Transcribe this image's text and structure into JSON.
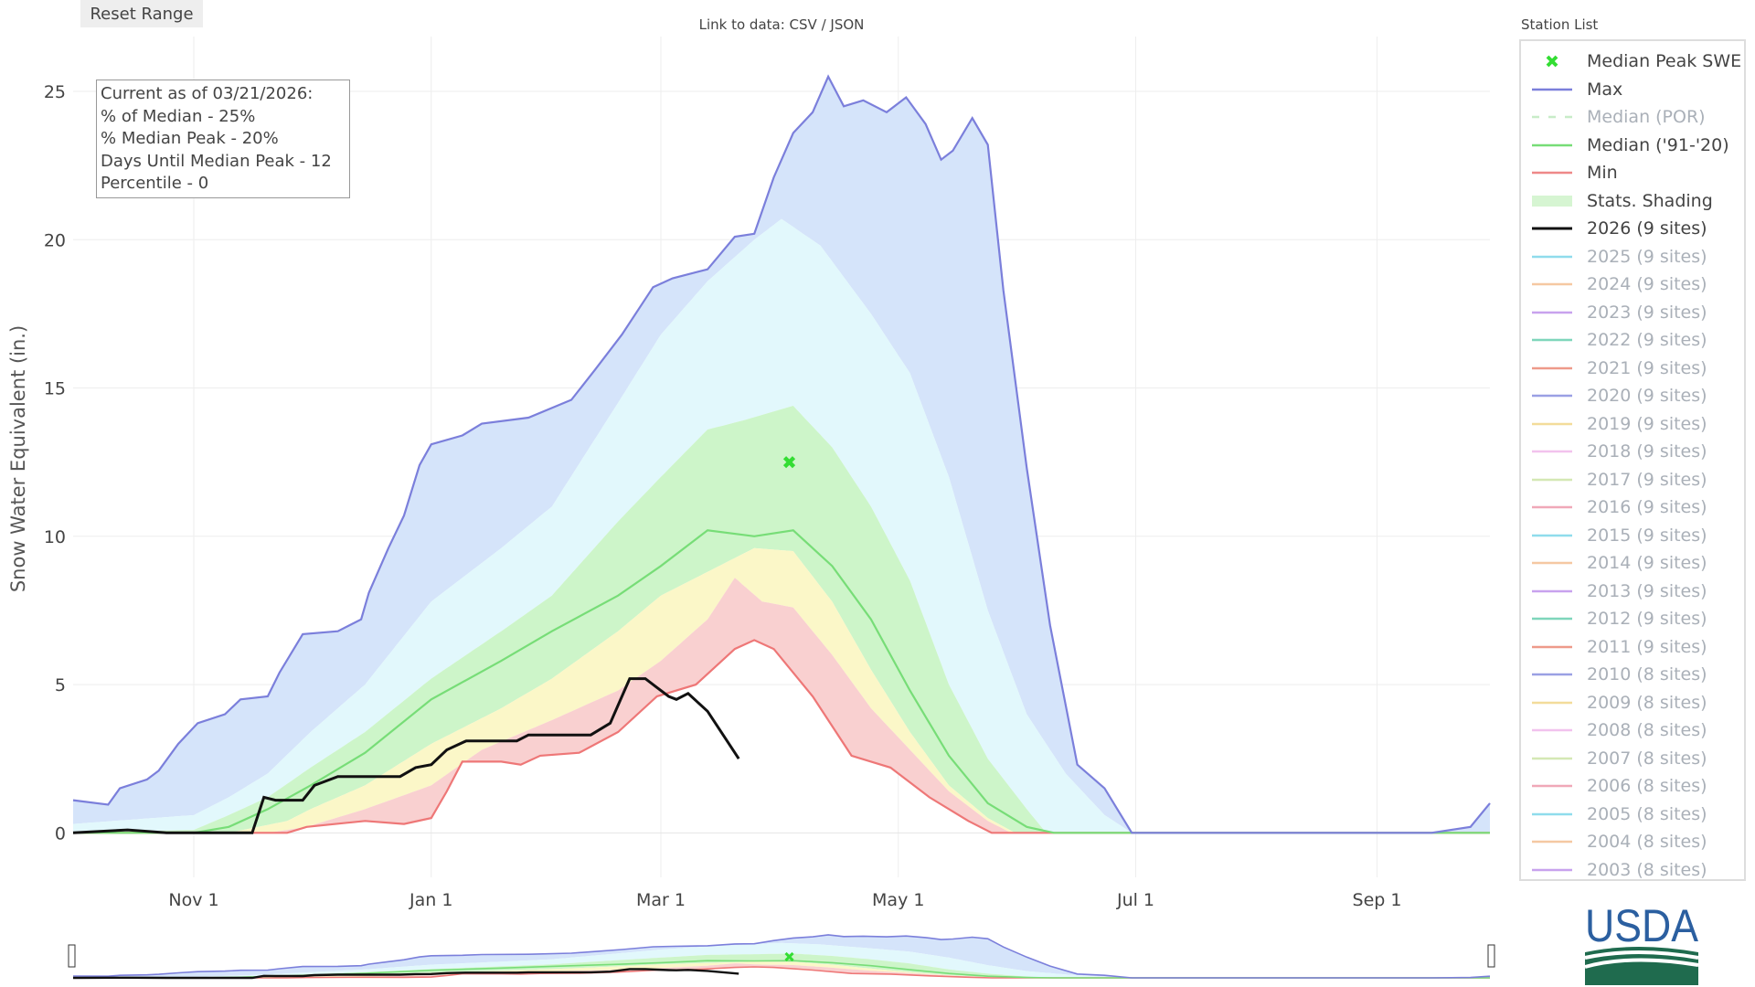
{
  "toolbar": {
    "reset_label": "Reset Range"
  },
  "links": {
    "prefix": "Link to data: ",
    "csv": "CSV",
    "sep": " / ",
    "json": "JSON"
  },
  "annotation": {
    "lines": [
      "Current as of 03/21/2026:",
      "% of Median - 25%",
      "% Median Peak - 20%",
      "Days Until Median Peak - 12",
      "Percentile - 0"
    ]
  },
  "legend": {
    "title": "Station List",
    "items": [
      {
        "label": "Median Peak SWE",
        "type": "marker",
        "color": "#33dd33",
        "active": true
      },
      {
        "label": "Max",
        "type": "line",
        "color": "#7b7fdb",
        "active": true
      },
      {
        "label": "Median (POR)",
        "type": "dash",
        "color": "#c8ecc8",
        "active": false
      },
      {
        "label": "Median ('91-'20)",
        "type": "line",
        "color": "#77dd77",
        "active": true
      },
      {
        "label": "Min",
        "type": "line",
        "color": "#ee8888",
        "active": true
      },
      {
        "label": "Stats. Shading",
        "type": "fill",
        "color": "#d6f5d2",
        "active": true
      },
      {
        "label": "2026 (9 sites)",
        "type": "line",
        "color": "#111111",
        "active": true
      },
      {
        "label": "2025 (9 sites)",
        "type": "line",
        "color": "#8fdcec",
        "active": false
      },
      {
        "label": "2024 (9 sites)",
        "type": "line",
        "color": "#f5c8a2",
        "active": false
      },
      {
        "label": "2023 (9 sites)",
        "type": "line",
        "color": "#c8a2ee",
        "active": false
      },
      {
        "label": "2022 (9 sites)",
        "type": "line",
        "color": "#7fd6bb",
        "active": false
      },
      {
        "label": "2021 (9 sites)",
        "type": "line",
        "color": "#ee9a8a",
        "active": false
      },
      {
        "label": "2020 (9 sites)",
        "type": "line",
        "color": "#9aa0e4",
        "active": false
      },
      {
        "label": "2019 (9 sites)",
        "type": "line",
        "color": "#f3dc9a",
        "active": false
      },
      {
        "label": "2018 (9 sites)",
        "type": "line",
        "color": "#f2c2ee",
        "active": false
      },
      {
        "label": "2017 (9 sites)",
        "type": "line",
        "color": "#d4e8b4",
        "active": false
      },
      {
        "label": "2016 (9 sites)",
        "type": "line",
        "color": "#f0a8b8",
        "active": false
      },
      {
        "label": "2015 (9 sites)",
        "type": "line",
        "color": "#8fdcec",
        "active": false
      },
      {
        "label": "2014 (9 sites)",
        "type": "line",
        "color": "#f5c8a2",
        "active": false
      },
      {
        "label": "2013 (9 sites)",
        "type": "line",
        "color": "#c8a2ee",
        "active": false
      },
      {
        "label": "2012 (9 sites)",
        "type": "line",
        "color": "#7fd6bb",
        "active": false
      },
      {
        "label": "2011 (9 sites)",
        "type": "line",
        "color": "#ee9a8a",
        "active": false
      },
      {
        "label": "2010 (8 sites)",
        "type": "line",
        "color": "#9aa0e4",
        "active": false
      },
      {
        "label": "2009 (8 sites)",
        "type": "line",
        "color": "#f3dc9a",
        "active": false
      },
      {
        "label": "2008 (8 sites)",
        "type": "line",
        "color": "#f2c2ee",
        "active": false
      },
      {
        "label": "2007 (8 sites)",
        "type": "line",
        "color": "#d4e8b4",
        "active": false
      },
      {
        "label": "2006 (8 sites)",
        "type": "line",
        "color": "#f0a8b8",
        "active": false
      },
      {
        "label": "2005 (8 sites)",
        "type": "line",
        "color": "#8fdcec",
        "active": false
      },
      {
        "label": "2004 (8 sites)",
        "type": "line",
        "color": "#f5c8a2",
        "active": false
      },
      {
        "label": "2003 (8 sites)",
        "type": "line",
        "color": "#c8a2ee",
        "active": false
      }
    ]
  },
  "logo": {
    "text": "USDA"
  },
  "chart_data": {
    "type": "area",
    "title": "",
    "xlabel": "",
    "ylabel": "Snow Water Equivalent (in.)",
    "x_unit": "days since Oct 1",
    "xlim": [
      0,
      364
    ],
    "ylim": [
      -1.5,
      26.85
    ],
    "grid": true,
    "legend_position": "right",
    "x_ticks": [
      {
        "day": 31,
        "label": "Nov 1"
      },
      {
        "day": 92,
        "label": "Jan 1"
      },
      {
        "day": 151,
        "label": "Mar 1"
      },
      {
        "day": 212,
        "label": "May 1"
      },
      {
        "day": 273,
        "label": "Jul 1"
      },
      {
        "day": 335,
        "label": "Sep 1"
      }
    ],
    "y_ticks": [
      0,
      5,
      10,
      15,
      20,
      25
    ],
    "colors": {
      "max": "#7b7fdb",
      "median": "#77dd77",
      "min": "#ee7777",
      "current": "#111111",
      "band_90_max": "#d5e4fa",
      "band_70_90": "#e2f8fc",
      "band_30_70": "#cdf5c9",
      "band_10_30": "#fbf7c8",
      "band_min_10": "#f9d0d0",
      "marker": "#33dd33"
    },
    "series": [
      {
        "name": "Max",
        "points": [
          [
            0,
            1.1
          ],
          [
            9,
            0.95
          ],
          [
            12,
            1.5
          ],
          [
            19,
            1.8
          ],
          [
            22,
            2.1
          ],
          [
            27,
            3.0
          ],
          [
            32,
            3.7
          ],
          [
            39,
            4.0
          ],
          [
            43,
            4.5
          ],
          [
            50,
            4.6
          ],
          [
            53,
            5.4
          ],
          [
            59,
            6.7
          ],
          [
            68,
            6.8
          ],
          [
            74,
            7.2
          ],
          [
            76,
            8.1
          ],
          [
            81,
            9.6
          ],
          [
            85,
            10.7
          ],
          [
            89,
            12.4
          ],
          [
            92,
            13.1
          ],
          [
            100,
            13.4
          ],
          [
            105,
            13.8
          ],
          [
            117,
            14.0
          ],
          [
            128,
            14.6
          ],
          [
            134,
            15.6
          ],
          [
            141,
            16.8
          ],
          [
            149,
            18.4
          ],
          [
            154,
            18.7
          ],
          [
            163,
            19.0
          ],
          [
            170,
            20.1
          ],
          [
            175,
            20.2
          ],
          [
            180,
            22.1
          ],
          [
            185,
            23.6
          ],
          [
            190,
            24.3
          ],
          [
            194,
            25.5
          ],
          [
            198,
            24.5
          ],
          [
            203,
            24.7
          ],
          [
            209,
            24.3
          ],
          [
            214,
            24.8
          ],
          [
            219,
            23.9
          ],
          [
            223,
            22.7
          ],
          [
            226,
            23.0
          ],
          [
            231,
            24.1
          ],
          [
            235,
            23.2
          ],
          [
            239,
            18.3
          ],
          [
            245,
            12.3
          ],
          [
            251,
            7.0
          ],
          [
            258,
            2.3
          ],
          [
            265,
            1.5
          ],
          [
            272,
            0
          ],
          [
            349,
            0
          ],
          [
            359,
            0.2
          ],
          [
            364,
            1.0
          ]
        ]
      },
      {
        "name": "90th Percentile",
        "points": [
          [
            0,
            0.3
          ],
          [
            31,
            0.6
          ],
          [
            40,
            1.2
          ],
          [
            50,
            2.0
          ],
          [
            61,
            3.4
          ],
          [
            75,
            5.0
          ],
          [
            92,
            7.8
          ],
          [
            110,
            9.6
          ],
          [
            123,
            11.0
          ],
          [
            140,
            14.5
          ],
          [
            151,
            16.8
          ],
          [
            163,
            18.6
          ],
          [
            175,
            20.0
          ],
          [
            182,
            20.7
          ],
          [
            192,
            19.8
          ],
          [
            205,
            17.5
          ],
          [
            215,
            15.5
          ],
          [
            225,
            12.0
          ],
          [
            235,
            7.5
          ],
          [
            245,
            4.0
          ],
          [
            255,
            2.0
          ],
          [
            265,
            0.6
          ],
          [
            272,
            0
          ],
          [
            364,
            0
          ]
        ]
      },
      {
        "name": "70th Percentile",
        "points": [
          [
            0,
            0
          ],
          [
            31,
            0.1
          ],
          [
            40,
            0.6
          ],
          [
            50,
            1.2
          ],
          [
            61,
            2.2
          ],
          [
            75,
            3.4
          ],
          [
            92,
            5.2
          ],
          [
            110,
            6.8
          ],
          [
            123,
            8.0
          ],
          [
            140,
            10.5
          ],
          [
            151,
            12.0
          ],
          [
            163,
            13.6
          ],
          [
            172,
            13.9
          ],
          [
            185,
            14.4
          ],
          [
            195,
            13.0
          ],
          [
            205,
            11.0
          ],
          [
            215,
            8.5
          ],
          [
            225,
            5.0
          ],
          [
            235,
            2.5
          ],
          [
            245,
            0.8
          ],
          [
            250,
            0
          ],
          [
            364,
            0
          ]
        ]
      },
      {
        "name": "Median ('91-'20)",
        "points": [
          [
            0,
            0
          ],
          [
            31,
            0
          ],
          [
            40,
            0.2
          ],
          [
            50,
            0.8
          ],
          [
            61,
            1.6
          ],
          [
            75,
            2.7
          ],
          [
            92,
            4.5
          ],
          [
            110,
            5.8
          ],
          [
            123,
            6.8
          ],
          [
            140,
            8.0
          ],
          [
            151,
            9.0
          ],
          [
            163,
            10.2
          ],
          [
            175,
            10.0
          ],
          [
            185,
            10.2
          ],
          [
            195,
            9.0
          ],
          [
            205,
            7.2
          ],
          [
            215,
            4.8
          ],
          [
            225,
            2.6
          ],
          [
            235,
            1.0
          ],
          [
            245,
            0.2
          ],
          [
            252,
            0
          ],
          [
            364,
            0
          ]
        ]
      },
      {
        "name": "30th Percentile",
        "points": [
          [
            0,
            0
          ],
          [
            40,
            0
          ],
          [
            55,
            0.4
          ],
          [
            61,
            0.8
          ],
          [
            75,
            1.6
          ],
          [
            92,
            3.0
          ],
          [
            110,
            4.2
          ],
          [
            123,
            5.2
          ],
          [
            140,
            6.8
          ],
          [
            151,
            8.0
          ],
          [
            163,
            8.8
          ],
          [
            175,
            9.6
          ],
          [
            185,
            9.5
          ],
          [
            195,
            7.8
          ],
          [
            205,
            5.5
          ],
          [
            215,
            3.4
          ],
          [
            225,
            1.6
          ],
          [
            235,
            0.5
          ],
          [
            242,
            0
          ],
          [
            364,
            0
          ]
        ]
      },
      {
        "name": "10th Percentile",
        "points": [
          [
            0,
            0
          ],
          [
            50,
            0
          ],
          [
            60,
            0.2
          ],
          [
            75,
            0.8
          ],
          [
            92,
            1.6
          ],
          [
            105,
            2.8
          ],
          [
            123,
            3.8
          ],
          [
            140,
            4.8
          ],
          [
            151,
            5.8
          ],
          [
            163,
            7.2
          ],
          [
            170,
            8.6
          ],
          [
            177,
            7.8
          ],
          [
            185,
            7.6
          ],
          [
            195,
            6.0
          ],
          [
            205,
            4.2
          ],
          [
            215,
            2.8
          ],
          [
            225,
            1.4
          ],
          [
            235,
            0.4
          ],
          [
            241,
            0
          ],
          [
            364,
            0
          ]
        ]
      },
      {
        "name": "Min",
        "points": [
          [
            0,
            0
          ],
          [
            55,
            0
          ],
          [
            60,
            0.2
          ],
          [
            75,
            0.4
          ],
          [
            85,
            0.3
          ],
          [
            92,
            0.5
          ],
          [
            96,
            1.4
          ],
          [
            100,
            2.4
          ],
          [
            110,
            2.4
          ],
          [
            115,
            2.3
          ],
          [
            120,
            2.6
          ],
          [
            130,
            2.7
          ],
          [
            140,
            3.4
          ],
          [
            150,
            4.6
          ],
          [
            160,
            5.0
          ],
          [
            170,
            6.2
          ],
          [
            175,
            6.5
          ],
          [
            180,
            6.2
          ],
          [
            190,
            4.6
          ],
          [
            200,
            2.6
          ],
          [
            205,
            2.4
          ],
          [
            210,
            2.2
          ],
          [
            220,
            1.2
          ],
          [
            230,
            0.4
          ],
          [
            236,
            0
          ],
          [
            364,
            0
          ]
        ]
      },
      {
        "name": "2026 (9 sites)",
        "points": [
          [
            0,
            0
          ],
          [
            14,
            0.1
          ],
          [
            24,
            0
          ],
          [
            46,
            0
          ],
          [
            49,
            1.2
          ],
          [
            52,
            1.1
          ],
          [
            59,
            1.1
          ],
          [
            62,
            1.6
          ],
          [
            68,
            1.9
          ],
          [
            76,
            1.9
          ],
          [
            84,
            1.9
          ],
          [
            88,
            2.2
          ],
          [
            92,
            2.3
          ],
          [
            96,
            2.8
          ],
          [
            101,
            3.1
          ],
          [
            114,
            3.1
          ],
          [
            117,
            3.3
          ],
          [
            133,
            3.3
          ],
          [
            138,
            3.7
          ],
          [
            143,
            5.2
          ],
          [
            147,
            5.2
          ],
          [
            150,
            4.9
          ],
          [
            153,
            4.6
          ],
          [
            155,
            4.5
          ],
          [
            158,
            4.7
          ],
          [
            163,
            4.1
          ],
          [
            168,
            3.1
          ],
          [
            171,
            2.5
          ]
        ]
      }
    ],
    "median_peak": {
      "day": 184,
      "value": 12.5,
      "label": "Median Peak SWE"
    }
  }
}
